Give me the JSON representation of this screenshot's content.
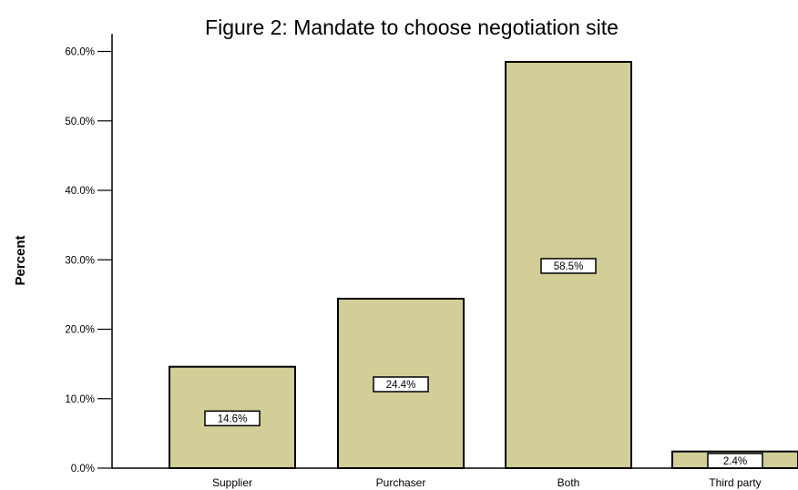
{
  "chart_data": {
    "type": "bar",
    "title": "Figure 2: Mandate to choose negotiation site",
    "xlabel": "",
    "ylabel": "Percent",
    "categories": [
      "Supplier",
      "Purchaser",
      "Both",
      "Third party"
    ],
    "values": [
      14.6,
      24.4,
      58.5,
      2.4
    ],
    "data_labels": [
      "14.6%",
      "24.4%",
      "58.5%",
      "2.4%"
    ],
    "y_ticks": [
      0,
      10,
      20,
      30,
      40,
      50,
      60
    ],
    "y_tick_labels": [
      "0.0%",
      "10.0%",
      "20.0%",
      "30.0%",
      "40.0%",
      "50.0%",
      "60.0%"
    ],
    "ylim": [
      0,
      62
    ],
    "grid": false,
    "legend": "none",
    "colors": {
      "bar_fill": "#d3cd98",
      "bar_stroke": "#000000",
      "axis": "#000000",
      "label_box_fill": "#ffffff"
    }
  }
}
